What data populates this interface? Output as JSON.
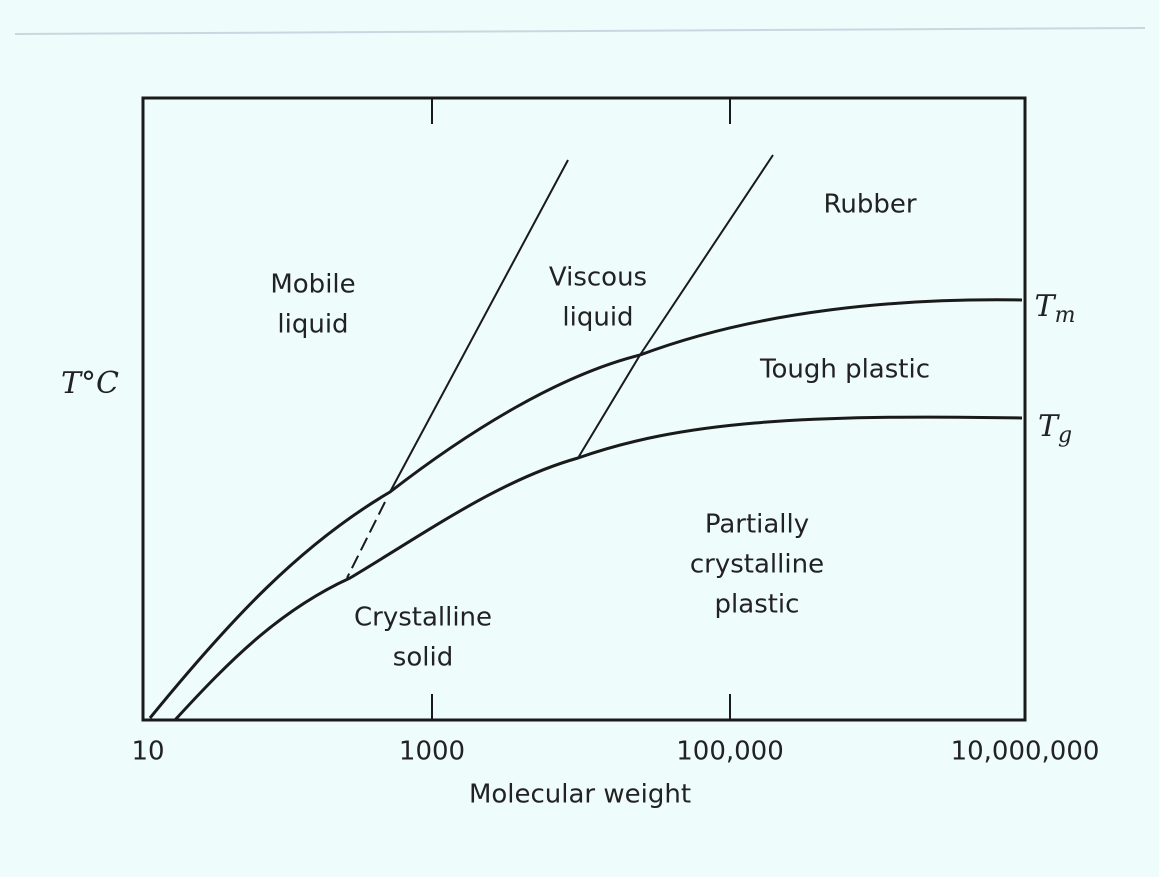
{
  "axes": {
    "y_label": "T°C",
    "x_label": "Molecular weight",
    "x_ticks": [
      "10",
      "1000",
      "100,000",
      "10,000,000"
    ]
  },
  "regions": [
    {
      "lines": [
        "Mobile",
        "liquid"
      ]
    },
    {
      "lines": [
        "Viscous",
        "liquid"
      ]
    },
    {
      "lines": [
        "Rubber"
      ]
    },
    {
      "lines": [
        "Tough plastic"
      ]
    },
    {
      "lines": [
        "Partially",
        "crystalline",
        "plastic"
      ]
    },
    {
      "lines": [
        "Crystalline",
        "solid"
      ]
    }
  ],
  "curve_labels": [
    {
      "symbol": "T",
      "subscript": "m"
    },
    {
      "symbol": "T",
      "subscript": "g"
    }
  ]
}
